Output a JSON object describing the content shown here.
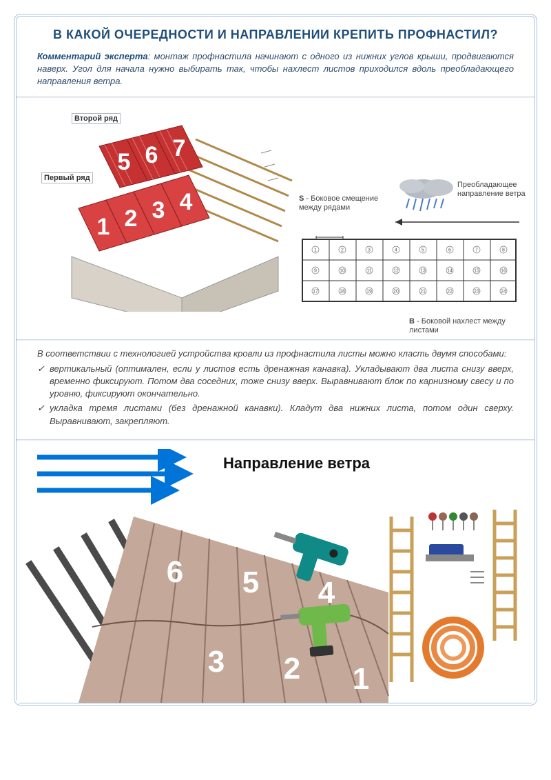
{
  "title": "В КАКОЙ ОЧЕРЕДНОСТИ И НАПРАВЛЕНИИ КРЕПИТЬ ПРОФНАСТИЛ?",
  "comment": {
    "label": "Комментарий эксперта",
    "text": ": монтаж профнастила начинают с одного из нижних углов крыши, продвигаются наверх. Угол для начала нужно выбирать так, чтобы нахлест листов приходился вдоль преобладающего направления ветра."
  },
  "diagram1": {
    "row2_label": "Второй ряд",
    "row1_label": "Первый ряд",
    "top_numbers": [
      "5",
      "6",
      "7"
    ],
    "bottom_numbers": [
      "1",
      "2",
      "3",
      "4"
    ],
    "s_label": "S - Боковое смещение между рядами",
    "wind_label": "Преобладающее направление ветра",
    "b_label": "B - Боковой нахлест между листами",
    "sheet_color_top": "#c63131",
    "sheet_color_bottom": "#d84242",
    "wood_color": "#d4a864",
    "wall_color": "#d8d2c8",
    "grid_cols": 8,
    "grid_rows": 3,
    "grid_order": [
      9,
      10,
      11,
      12,
      13,
      14,
      15,
      16,
      1,
      2,
      3,
      4,
      5,
      6,
      7,
      8,
      17,
      18,
      19,
      20,
      21,
      22,
      23,
      24
    ]
  },
  "methods": {
    "intro": "В соответствии с технологией устройства кровли из профнастила листы можно класть двумя способами:",
    "items": [
      "вертикальный (оптимален, если у листов есть дренажная канавка). Укладывают два листа снизу вверх, временно фиксируют. Потом два соседних, тоже снизу вверх. Выравнивают блок по карнизному свесу и по уровню, фиксируют окончательно.",
      "укладка тремя листами (без дренажной канавки). Кладут два нижних листа, потом один сверху. Выравнивают, закрепляют."
    ]
  },
  "diagram2": {
    "wind_title": "Направление ветра",
    "numbers": [
      "1",
      "2",
      "3",
      "4",
      "5",
      "6"
    ],
    "roof_color": "#c4a89a",
    "batten_color": "#5a5a5a",
    "arrow_color": "#0074d9",
    "drill_color": "#0f8a86",
    "drill2_color": "#6fb94b",
    "ladder_color": "#c9a05a",
    "rope_color": "#e37a2e"
  },
  "colors": {
    "border": "#a9c2e0",
    "title": "#1f4e79",
    "text": "#2f4a6b"
  }
}
